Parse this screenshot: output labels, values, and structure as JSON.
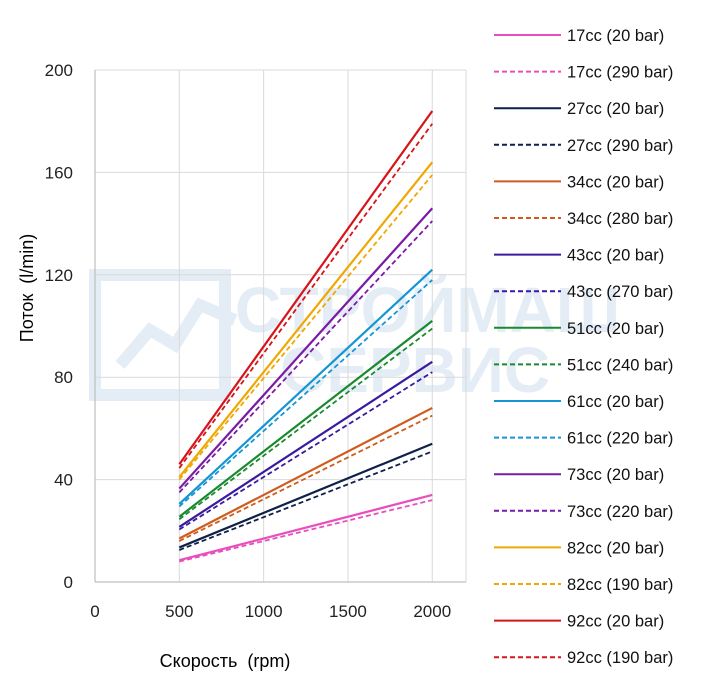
{
  "watermark": {
    "line1": "СТРОЙМАШ",
    "line2": "СЕРВИС"
  },
  "chart_data": {
    "type": "line",
    "title": "",
    "xlabel": "Скорость  (rpm)",
    "ylabel": "Поток  (l/min)",
    "xlim": [
      0,
      2200
    ],
    "ylim": [
      0,
      200
    ],
    "xticks": [
      "0",
      "500",
      "1000",
      "1500",
      "2000"
    ],
    "yticks": [
      "0",
      "40",
      "80",
      "120",
      "160",
      "200"
    ],
    "grid": true,
    "legend_position": "right",
    "x": [
      500,
      2000
    ],
    "series": [
      {
        "name": "17cc (20 bar)",
        "color": "#e84fbd",
        "style": "solid",
        "values": [
          8.5,
          34
        ]
      },
      {
        "name": "17cc (290 bar)",
        "color": "#e84fbd",
        "style": "dashed",
        "values": [
          8,
          32
        ]
      },
      {
        "name": "27cc (20 bar)",
        "color": "#0f2148",
        "style": "solid",
        "values": [
          13.5,
          54
        ]
      },
      {
        "name": "27cc (290 bar)",
        "color": "#0f2148",
        "style": "dashed",
        "values": [
          12.5,
          51
        ]
      },
      {
        "name": "34cc (20 bar)",
        "color": "#cf5c1c",
        "style": "solid",
        "values": [
          17,
          68
        ]
      },
      {
        "name": "34cc (280 bar)",
        "color": "#cf5c1c",
        "style": "dashed",
        "values": [
          16,
          65
        ]
      },
      {
        "name": "43cc (20 bar)",
        "color": "#3a1a9e",
        "style": "solid",
        "values": [
          21.5,
          86
        ]
      },
      {
        "name": "43cc (270 bar)",
        "color": "#3a1a9e",
        "style": "dashed",
        "values": [
          20.5,
          82
        ]
      },
      {
        "name": "51cc (20 bar)",
        "color": "#1a8a2e",
        "style": "solid",
        "values": [
          25.5,
          102
        ]
      },
      {
        "name": "51cc (240 bar)",
        "color": "#1a8a2e",
        "style": "dashed",
        "values": [
          24.5,
          99
        ]
      },
      {
        "name": "61cc (20 bar)",
        "color": "#1495d4",
        "style": "solid",
        "values": [
          30.5,
          122
        ]
      },
      {
        "name": "61cc (220 bar)",
        "color": "#1495d4",
        "style": "dashed",
        "values": [
          29.5,
          118
        ]
      },
      {
        "name": "73cc (20 bar)",
        "color": "#7b1aa6",
        "style": "solid",
        "values": [
          36.5,
          146
        ]
      },
      {
        "name": "73cc (220 bar)",
        "color": "#7b1aa6",
        "style": "dashed",
        "values": [
          35,
          141
        ]
      },
      {
        "name": "82cc (20 bar)",
        "color": "#f0a800",
        "style": "solid",
        "values": [
          41,
          164
        ]
      },
      {
        "name": "82cc (190 bar)",
        "color": "#f0a800",
        "style": "dashed",
        "values": [
          40,
          159
        ]
      },
      {
        "name": "92cc (20 bar)",
        "color": "#d6151b",
        "style": "solid",
        "values": [
          46,
          184
        ]
      },
      {
        "name": "92cc (190 bar)",
        "color": "#d6151b",
        "style": "dashed",
        "values": [
          44.5,
          179
        ]
      }
    ]
  }
}
